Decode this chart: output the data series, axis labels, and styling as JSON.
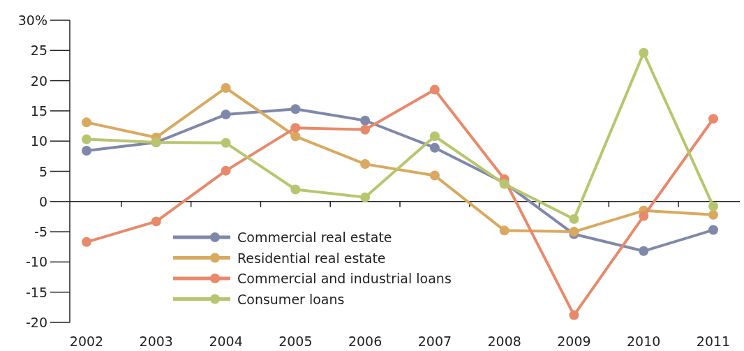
{
  "chart_data": {
    "type": "line",
    "categories": [
      "2002",
      "2003",
      "2004",
      "2005",
      "2006",
      "2007",
      "2008",
      "2009",
      "2010",
      "2011"
    ],
    "ylim": [
      -20,
      30
    ],
    "yticks": [
      {
        "value": -20,
        "label": "-20"
      },
      {
        "value": -15,
        "label": "-15"
      },
      {
        "value": -10,
        "label": "-10"
      },
      {
        "value": -5,
        "label": "-5"
      },
      0,
      5,
      10,
      15,
      20,
      25,
      {
        "value": 30,
        "label": "30%"
      }
    ],
    "grid": false,
    "ref_lines": [
      {
        "axis": "y",
        "value": 0,
        "color": "#222222"
      }
    ],
    "legend": "bottom left",
    "marker": "circle",
    "line_style": "solid",
    "series": [
      {
        "name": "Commercial real estate",
        "color": "#8088aa",
        "values": [
          8.4,
          9.8,
          14.4,
          15.3,
          13.4,
          8.9,
          3.1,
          -5.4,
          -8.2,
          -4.7
        ]
      },
      {
        "name": "Residential real estate",
        "color": "#d9a95f",
        "values": [
          13.1,
          10.6,
          18.8,
          10.8,
          6.2,
          4.3,
          -4.8,
          -5.0,
          -1.5,
          -2.2
        ]
      },
      {
        "name": "Commercial and industrial loans",
        "color": "#e8896a",
        "values": [
          -6.7,
          -3.3,
          5.1,
          12.2,
          11.9,
          18.5,
          3.7,
          -18.8,
          -2.4,
          13.7
        ]
      },
      {
        "name": "Consumer loans",
        "color": "#b9c56e",
        "values": [
          10.3,
          9.8,
          9.7,
          2.0,
          0.7,
          10.8,
          2.9,
          -2.9,
          24.6,
          -0.8
        ]
      }
    ]
  }
}
